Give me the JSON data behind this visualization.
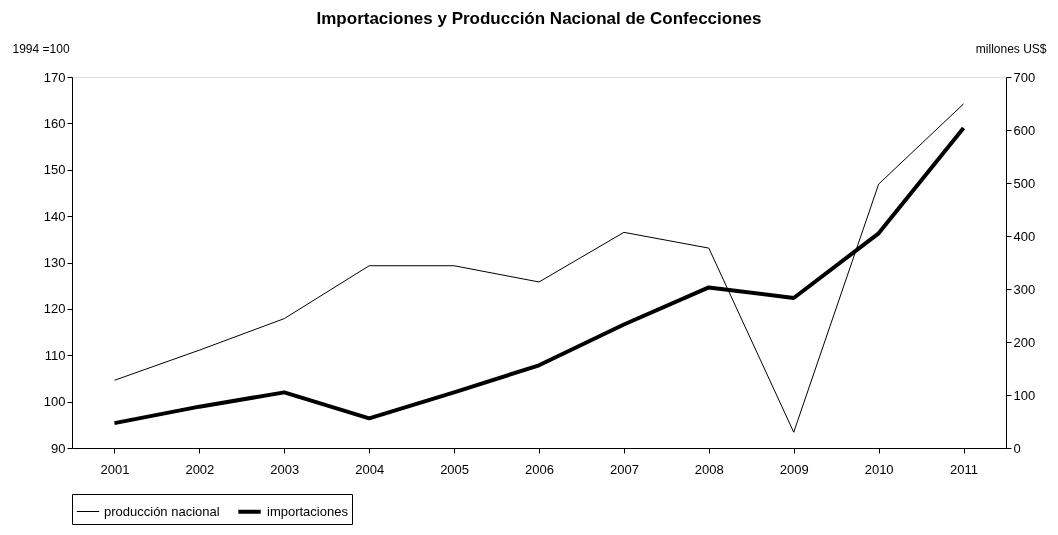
{
  "chart_data": {
    "type": "line",
    "title": "Importaciones y Producción Nacional de Confecciones",
    "ylabel": "1994 =100",
    "y2label": "millones US$",
    "categories": [
      "2001",
      "2002",
      "2003",
      "2004",
      "2005",
      "2006",
      "2007",
      "2008",
      "2009",
      "2010",
      "2011"
    ],
    "series": [
      {
        "name": "producción nacional",
        "color": "#000000",
        "values": [
          104.6,
          111.1,
          117.9,
          129.3,
          129.3,
          125.8,
          136.5,
          133.1,
          93.4,
          146.9,
          164.2
        ]
      },
      {
        "name": "importaciones",
        "color": "#000000",
        "axis": "y2",
        "values": [
          47,
          78,
          105,
          56,
          105,
          156,
          233,
          303,
          283,
          405,
          604
        ]
      }
    ],
    "ylim": [
      90,
      170
    ],
    "yticks": [
      90,
      100,
      110,
      120,
      130,
      140,
      150,
      160,
      170
    ],
    "y2lim": [
      0,
      700
    ],
    "y2ticks": [
      0,
      100,
      200,
      300,
      400,
      500,
      600,
      700
    ],
    "grid": false,
    "legend": "bottom",
    "marker": "none",
    "line_style": "solid"
  }
}
